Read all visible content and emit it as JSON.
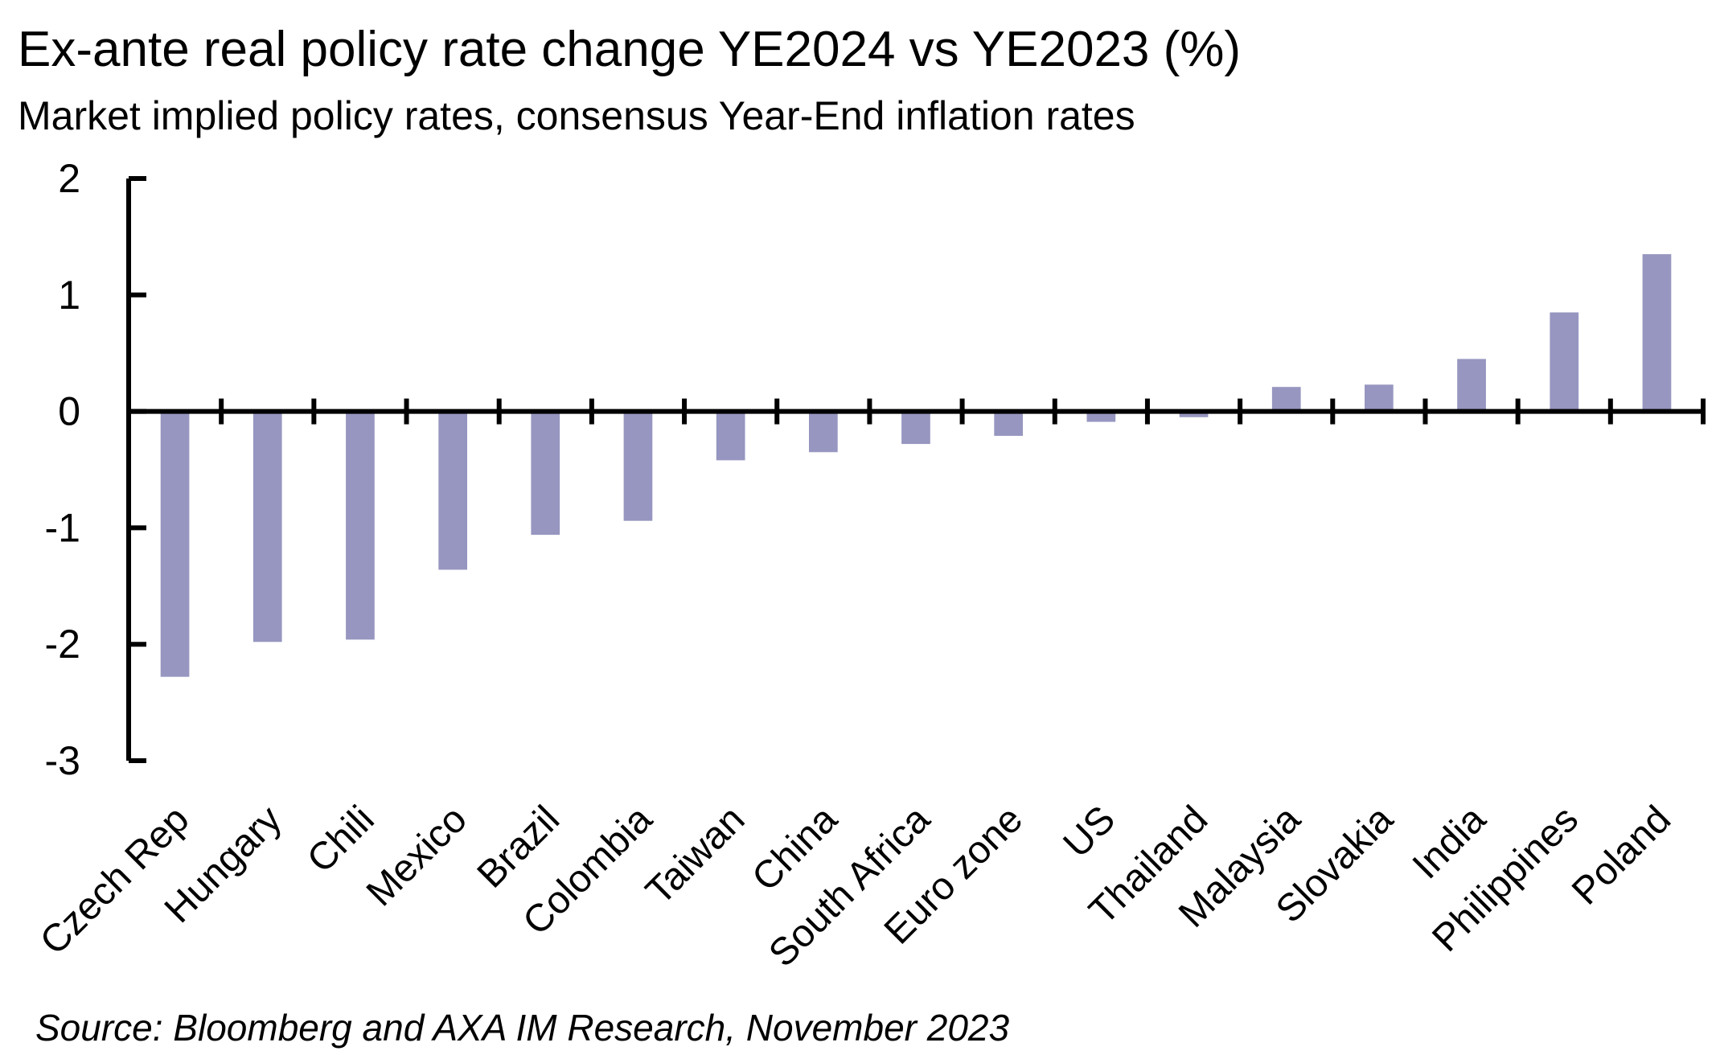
{
  "chart_data": {
    "type": "bar",
    "title": "Ex-ante real policy rate change YE2024 vs YE2023 (%)",
    "subtitle": "Market implied policy rates, consensus Year-End inflation rates",
    "source": "Source: Bloomberg and AXA IM Research, November 2023",
    "categories": [
      "Czech Rep",
      "Hungary",
      "Chili",
      "Mexico",
      "Brazil",
      "Colombia",
      "Taiwan",
      "China",
      "South Africa",
      "Euro zone",
      "US",
      "Thailand",
      "Malaysia",
      "Slovakia",
      "India",
      "Philippines",
      "Poland"
    ],
    "series": [
      {
        "values": [
          -2.28,
          -1.98,
          -1.96,
          -1.36,
          -1.06,
          -0.94,
          -0.42,
          -0.35,
          -0.28,
          -0.21,
          -0.09,
          -0.05,
          0.21,
          0.23,
          0.45,
          0.85,
          1.35
        ],
        "color": "#9696c0"
      }
    ],
    "yticks": [
      "2",
      "1",
      "0",
      "-1",
      "-2",
      "-3"
    ],
    "ylim": [
      -3,
      2
    ],
    "grid": false,
    "legend": "none"
  }
}
